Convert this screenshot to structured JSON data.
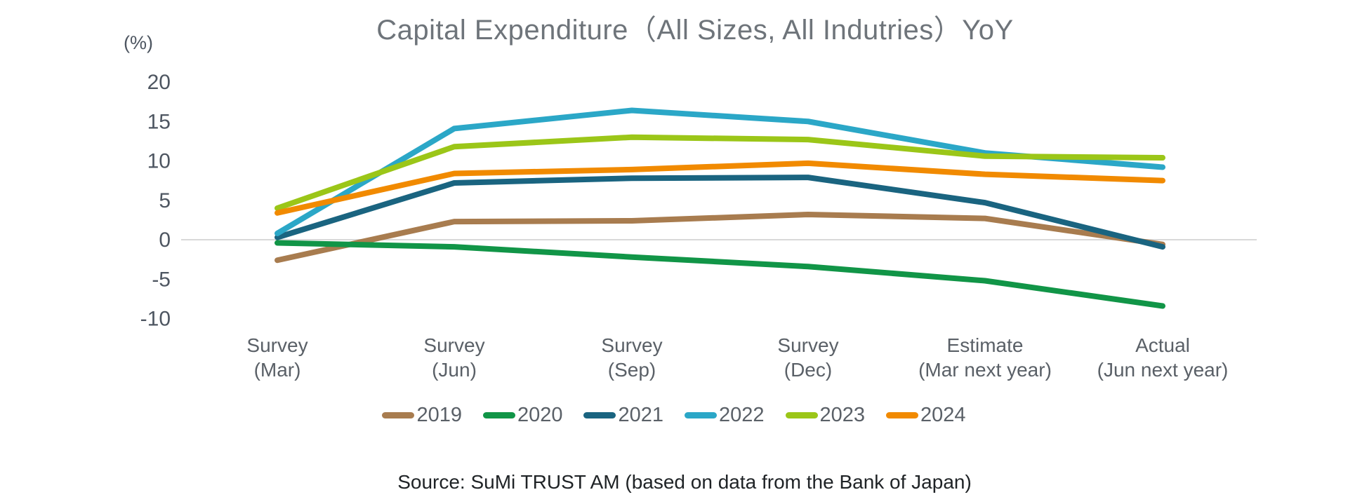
{
  "title": "Capital Expenditure（All Sizes, All Indutries）YoY",
  "source": "Source: SuMi TRUST AM (based on data from the Bank of Japan)",
  "chart_data": {
    "type": "line",
    "title": "Capital Expenditure（All Sizes, All Indutries）YoY",
    "unit_label": "(%)",
    "xlabel": "",
    "ylabel": "(%)",
    "y_ticks": [
      20,
      15,
      10,
      5,
      0,
      -5,
      -10
    ],
    "ylim": [
      -12,
      22
    ],
    "grid": "zero-baseline-only",
    "legend_position": "bottom",
    "categories": [
      {
        "line1": "Survey",
        "line2": "(Mar)"
      },
      {
        "line1": "Survey",
        "line2": "(Jun)"
      },
      {
        "line1": "Survey",
        "line2": "(Sep)"
      },
      {
        "line1": "Survey",
        "line2": "(Dec)"
      },
      {
        "line1": "Estimate",
        "line2": "(Mar next year)"
      },
      {
        "line1": "Actual",
        "line2": "(Jun next year)"
      }
    ],
    "series": [
      {
        "name": "2019",
        "color": "#a87c4f",
        "values": [
          -2.6,
          2.3,
          2.4,
          3.2,
          2.7,
          -0.6
        ]
      },
      {
        "name": "2020",
        "color": "#119547",
        "values": [
          -0.4,
          -0.9,
          -2.2,
          -3.4,
          -5.2,
          -8.4
        ]
      },
      {
        "name": "2021",
        "color": "#1a6480",
        "values": [
          0.3,
          7.2,
          7.8,
          7.9,
          4.7,
          -0.9
        ]
      },
      {
        "name": "2022",
        "color": "#2ba7c7",
        "values": [
          0.8,
          14.1,
          16.4,
          15.0,
          11.0,
          9.2
        ]
      },
      {
        "name": "2023",
        "color": "#9bc618",
        "values": [
          4.0,
          11.8,
          13.0,
          12.7,
          10.6,
          10.4
        ]
      },
      {
        "name": "2024",
        "color": "#f18a00",
        "values": [
          3.4,
          8.4,
          8.9,
          9.7,
          8.3,
          7.5
        ]
      }
    ],
    "colors": {
      "axis_text": "#4e5661",
      "category_text": "#5a6067",
      "gridline": "#d9d9d9",
      "title_text": "#6e747a",
      "source_text": "#1f2326"
    }
  }
}
